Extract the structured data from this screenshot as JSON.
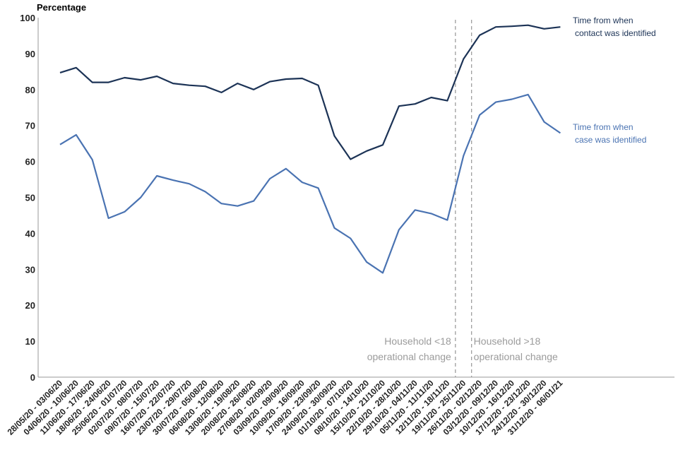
{
  "chart_data": {
    "type": "line",
    "ylabel": "Percentage",
    "xlabel": "",
    "ylim": [
      0,
      100
    ],
    "yticks": [
      0,
      10,
      20,
      30,
      40,
      50,
      60,
      70,
      80,
      90,
      100
    ],
    "grid": false,
    "categories": [
      "28/05/20 - 03/06/20",
      "04/06/20 - 10/06/20",
      "11/06/20 - 17/06/20",
      "18/06/20 - 24/06/20",
      "25/06/20 - 01/07/20",
      "02/07/20 - 08/07/20",
      "09/07/20 - 15/07/20",
      "16/07/20 - 22/07/20",
      "23/07/20 - 29/07/20",
      "30/07/20 - 05/08/20",
      "06/08/20 - 12/08/20",
      "13/08/20 - 19/08/20",
      "20/08/20 - 26/08/20",
      "27/08/20 - 02/09/20",
      "03/09/20 - 09/09/20",
      "10/09/20 - 16/09/20",
      "17/09/20 - 23/09/20",
      "24/09/20 - 30/09/20",
      "01/10/20 - 07/10/20",
      "08/10/20 - 14/10/20",
      "15/10/20 - 21/10/20",
      "22/10/20 - 28/10/20",
      "29/10/20 - 04/11/20",
      "05/11/20 - 11/11/20",
      "12/11/20 - 18/11/20",
      "19/11/20 - 25/11/20",
      "26/11/20 - 02/12/20",
      "03/12/20 - 09/12/20",
      "10/12/20 - 16/12/20",
      "17/12/20 - 23/12/20",
      "24/12/20 - 30/12/20",
      "31/12/20 - 06/01/21"
    ],
    "series": [
      {
        "name": "Time from when contact was identified",
        "label_lines": [
          "Time from when",
          "contact was identified"
        ],
        "color": "#1c3356",
        "values": [
          84.7,
          86.1,
          82.0,
          82.0,
          83.3,
          82.7,
          83.7,
          81.7,
          81.2,
          80.9,
          79.2,
          81.7,
          80.0,
          82.2,
          82.9,
          83.1,
          81.2,
          67.1,
          60.6,
          62.9,
          64.6,
          75.4,
          76.0,
          77.8,
          76.9,
          88.5,
          95.1,
          97.4,
          97.6,
          97.9,
          96.9,
          97.4
        ]
      },
      {
        "name": "Time from when case was identified",
        "label_lines": [
          "Time from when",
          "case was identified"
        ],
        "color": "#4a73b2",
        "values": [
          64.7,
          67.4,
          60.5,
          44.2,
          46.0,
          50.0,
          56.0,
          54.8,
          53.8,
          51.6,
          48.3,
          47.6,
          49.0,
          55.2,
          58.0,
          54.2,
          52.6,
          41.5,
          38.6,
          32.0,
          29.0,
          41.0,
          46.5,
          45.5,
          43.7,
          61.6,
          72.9,
          76.5,
          77.3,
          78.6,
          71.0,
          67.9
        ]
      }
    ],
    "annotations": [
      {
        "lines": [
          "Household <18",
          "operational change"
        ],
        "after_index": 24,
        "side": "left"
      },
      {
        "lines": [
          "Household >18",
          "operational change"
        ],
        "after_index": 25,
        "side": "right"
      }
    ]
  }
}
